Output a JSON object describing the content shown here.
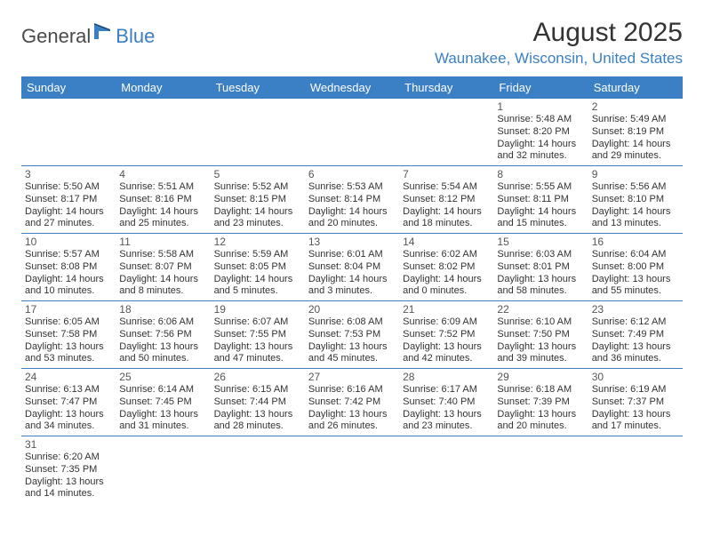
{
  "logo": {
    "general": "General",
    "blue": "Blue"
  },
  "title": "August 2025",
  "location": "Waunakee, Wisconsin, United States",
  "colors": {
    "header_bg": "#3b7fc4",
    "header_text": "#ffffff",
    "border": "#3b7fc4",
    "body_text": "#333333",
    "location_text": "#3b7fc4"
  },
  "day_headers": [
    "Sunday",
    "Monday",
    "Tuesday",
    "Wednesday",
    "Thursday",
    "Friday",
    "Saturday"
  ],
  "weeks": [
    [
      null,
      null,
      null,
      null,
      null,
      {
        "n": "1",
        "sr": "Sunrise: 5:48 AM",
        "ss": "Sunset: 8:20 PM",
        "d1": "Daylight: 14 hours",
        "d2": "and 32 minutes."
      },
      {
        "n": "2",
        "sr": "Sunrise: 5:49 AM",
        "ss": "Sunset: 8:19 PM",
        "d1": "Daylight: 14 hours",
        "d2": "and 29 minutes."
      }
    ],
    [
      {
        "n": "3",
        "sr": "Sunrise: 5:50 AM",
        "ss": "Sunset: 8:17 PM",
        "d1": "Daylight: 14 hours",
        "d2": "and 27 minutes."
      },
      {
        "n": "4",
        "sr": "Sunrise: 5:51 AM",
        "ss": "Sunset: 8:16 PM",
        "d1": "Daylight: 14 hours",
        "d2": "and 25 minutes."
      },
      {
        "n": "5",
        "sr": "Sunrise: 5:52 AM",
        "ss": "Sunset: 8:15 PM",
        "d1": "Daylight: 14 hours",
        "d2": "and 23 minutes."
      },
      {
        "n": "6",
        "sr": "Sunrise: 5:53 AM",
        "ss": "Sunset: 8:14 PM",
        "d1": "Daylight: 14 hours",
        "d2": "and 20 minutes."
      },
      {
        "n": "7",
        "sr": "Sunrise: 5:54 AM",
        "ss": "Sunset: 8:12 PM",
        "d1": "Daylight: 14 hours",
        "d2": "and 18 minutes."
      },
      {
        "n": "8",
        "sr": "Sunrise: 5:55 AM",
        "ss": "Sunset: 8:11 PM",
        "d1": "Daylight: 14 hours",
        "d2": "and 15 minutes."
      },
      {
        "n": "9",
        "sr": "Sunrise: 5:56 AM",
        "ss": "Sunset: 8:10 PM",
        "d1": "Daylight: 14 hours",
        "d2": "and 13 minutes."
      }
    ],
    [
      {
        "n": "10",
        "sr": "Sunrise: 5:57 AM",
        "ss": "Sunset: 8:08 PM",
        "d1": "Daylight: 14 hours",
        "d2": "and 10 minutes."
      },
      {
        "n": "11",
        "sr": "Sunrise: 5:58 AM",
        "ss": "Sunset: 8:07 PM",
        "d1": "Daylight: 14 hours",
        "d2": "and 8 minutes."
      },
      {
        "n": "12",
        "sr": "Sunrise: 5:59 AM",
        "ss": "Sunset: 8:05 PM",
        "d1": "Daylight: 14 hours",
        "d2": "and 5 minutes."
      },
      {
        "n": "13",
        "sr": "Sunrise: 6:01 AM",
        "ss": "Sunset: 8:04 PM",
        "d1": "Daylight: 14 hours",
        "d2": "and 3 minutes."
      },
      {
        "n": "14",
        "sr": "Sunrise: 6:02 AM",
        "ss": "Sunset: 8:02 PM",
        "d1": "Daylight: 14 hours",
        "d2": "and 0 minutes."
      },
      {
        "n": "15",
        "sr": "Sunrise: 6:03 AM",
        "ss": "Sunset: 8:01 PM",
        "d1": "Daylight: 13 hours",
        "d2": "and 58 minutes."
      },
      {
        "n": "16",
        "sr": "Sunrise: 6:04 AM",
        "ss": "Sunset: 8:00 PM",
        "d1": "Daylight: 13 hours",
        "d2": "and 55 minutes."
      }
    ],
    [
      {
        "n": "17",
        "sr": "Sunrise: 6:05 AM",
        "ss": "Sunset: 7:58 PM",
        "d1": "Daylight: 13 hours",
        "d2": "and 53 minutes."
      },
      {
        "n": "18",
        "sr": "Sunrise: 6:06 AM",
        "ss": "Sunset: 7:56 PM",
        "d1": "Daylight: 13 hours",
        "d2": "and 50 minutes."
      },
      {
        "n": "19",
        "sr": "Sunrise: 6:07 AM",
        "ss": "Sunset: 7:55 PM",
        "d1": "Daylight: 13 hours",
        "d2": "and 47 minutes."
      },
      {
        "n": "20",
        "sr": "Sunrise: 6:08 AM",
        "ss": "Sunset: 7:53 PM",
        "d1": "Daylight: 13 hours",
        "d2": "and 45 minutes."
      },
      {
        "n": "21",
        "sr": "Sunrise: 6:09 AM",
        "ss": "Sunset: 7:52 PM",
        "d1": "Daylight: 13 hours",
        "d2": "and 42 minutes."
      },
      {
        "n": "22",
        "sr": "Sunrise: 6:10 AM",
        "ss": "Sunset: 7:50 PM",
        "d1": "Daylight: 13 hours",
        "d2": "and 39 minutes."
      },
      {
        "n": "23",
        "sr": "Sunrise: 6:12 AM",
        "ss": "Sunset: 7:49 PM",
        "d1": "Daylight: 13 hours",
        "d2": "and 36 minutes."
      }
    ],
    [
      {
        "n": "24",
        "sr": "Sunrise: 6:13 AM",
        "ss": "Sunset: 7:47 PM",
        "d1": "Daylight: 13 hours",
        "d2": "and 34 minutes."
      },
      {
        "n": "25",
        "sr": "Sunrise: 6:14 AM",
        "ss": "Sunset: 7:45 PM",
        "d1": "Daylight: 13 hours",
        "d2": "and 31 minutes."
      },
      {
        "n": "26",
        "sr": "Sunrise: 6:15 AM",
        "ss": "Sunset: 7:44 PM",
        "d1": "Daylight: 13 hours",
        "d2": "and 28 minutes."
      },
      {
        "n": "27",
        "sr": "Sunrise: 6:16 AM",
        "ss": "Sunset: 7:42 PM",
        "d1": "Daylight: 13 hours",
        "d2": "and 26 minutes."
      },
      {
        "n": "28",
        "sr": "Sunrise: 6:17 AM",
        "ss": "Sunset: 7:40 PM",
        "d1": "Daylight: 13 hours",
        "d2": "and 23 minutes."
      },
      {
        "n": "29",
        "sr": "Sunrise: 6:18 AM",
        "ss": "Sunset: 7:39 PM",
        "d1": "Daylight: 13 hours",
        "d2": "and 20 minutes."
      },
      {
        "n": "30",
        "sr": "Sunrise: 6:19 AM",
        "ss": "Sunset: 7:37 PM",
        "d1": "Daylight: 13 hours",
        "d2": "and 17 minutes."
      }
    ],
    [
      {
        "n": "31",
        "sr": "Sunrise: 6:20 AM",
        "ss": "Sunset: 7:35 PM",
        "d1": "Daylight: 13 hours",
        "d2": "and 14 minutes."
      },
      null,
      null,
      null,
      null,
      null,
      null
    ]
  ]
}
